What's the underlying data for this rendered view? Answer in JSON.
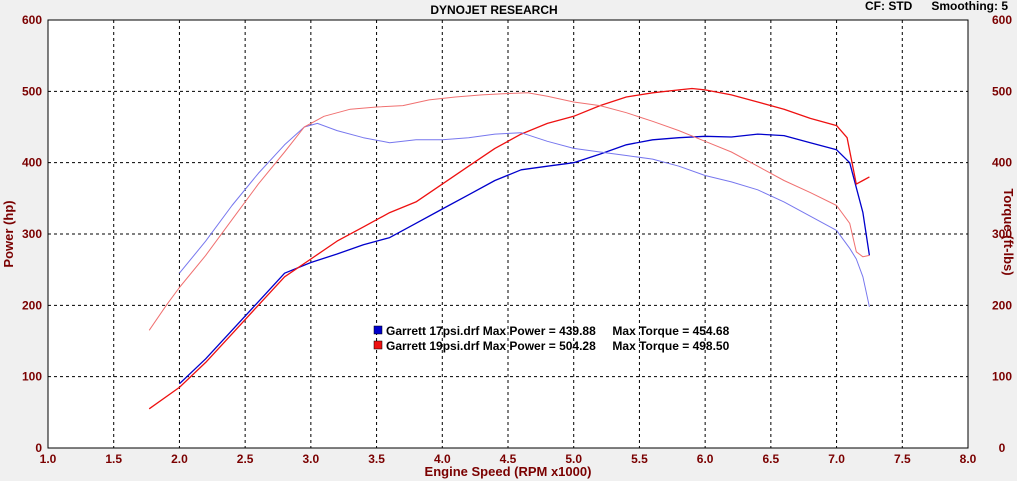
{
  "header": {
    "title": "DYNOJET RESEARCH",
    "cf": "CF: STD",
    "smoothing": "Smoothing: 5"
  },
  "chart_data": {
    "type": "line",
    "title": "DYNOJET RESEARCH",
    "xlabel": "Engine Speed (RPM x1000)",
    "ylabel": "Power (hp)",
    "ylabel_right": "Torque (ft-lbs)",
    "xlim": [
      1.0,
      8.0
    ],
    "ylim": [
      0,
      600
    ],
    "ylim_right": [
      0,
      600
    ],
    "x_ticks": [
      "1.0",
      "1.5",
      "2.0",
      "2.5",
      "3.0",
      "3.5",
      "4.0",
      "4.5",
      "5.0",
      "5.5",
      "6.0",
      "6.5",
      "7.0",
      "7.5",
      "8.0"
    ],
    "y_ticks": [
      "0",
      "100",
      "200",
      "300",
      "400",
      "500",
      "600"
    ],
    "y_ticks_right": [
      "0",
      "100",
      "200",
      "300",
      "400",
      "500",
      "600"
    ],
    "grid": true,
    "legend": [
      {
        "text": "Garrett 17psi.drf Max Power = 439.88     Max Torque = 454.68",
        "color": "#0000cc"
      },
      {
        "text": "Garrett 19psi.drf Max Power = 504.28     Max Torque = 498.50",
        "color": "#ee1111"
      }
    ],
    "series": [
      {
        "measure": "power",
        "run": "Garrett 17psi.drf",
        "color": "#0000cc",
        "width": 1.3,
        "x": [
          2.0,
          2.2,
          2.4,
          2.6,
          2.8,
          3.0,
          3.2,
          3.4,
          3.6,
          3.8,
          4.0,
          4.2,
          4.4,
          4.6,
          4.8,
          5.0,
          5.2,
          5.4,
          5.6,
          5.8,
          6.0,
          6.2,
          6.4,
          6.6,
          6.8,
          7.0,
          7.1,
          7.2,
          7.25
        ],
        "y": [
          90,
          125,
          165,
          205,
          245,
          260,
          272,
          285,
          295,
          315,
          335,
          355,
          375,
          390,
          395,
          400,
          412,
          425,
          432,
          435,
          437,
          436,
          440,
          438,
          428,
          418,
          400,
          330,
          270
        ]
      },
      {
        "measure": "power",
        "run": "Garrett 19psi.drf",
        "color": "#ee1111",
        "width": 1.3,
        "x": [
          1.77,
          2.0,
          2.2,
          2.4,
          2.6,
          2.8,
          3.0,
          3.2,
          3.4,
          3.6,
          3.8,
          4.0,
          4.2,
          4.4,
          4.6,
          4.8,
          5.0,
          5.2,
          5.4,
          5.6,
          5.8,
          5.9,
          6.0,
          6.2,
          6.4,
          6.6,
          6.8,
          7.0,
          7.08,
          7.15,
          7.2,
          7.25
        ],
        "y": [
          55,
          85,
          120,
          160,
          200,
          240,
          265,
          290,
          310,
          330,
          345,
          370,
          395,
          420,
          440,
          455,
          465,
          480,
          492,
          498,
          502,
          504,
          502,
          495,
          485,
          475,
          462,
          452,
          435,
          370,
          375,
          380
        ]
      },
      {
        "measure": "torque",
        "run": "Garrett 17psi.drf",
        "color": "#7777ee",
        "width": 1.0,
        "x": [
          2.0,
          2.2,
          2.4,
          2.6,
          2.8,
          2.95,
          3.05,
          3.2,
          3.4,
          3.6,
          3.8,
          4.0,
          4.2,
          4.4,
          4.6,
          4.8,
          5.0,
          5.2,
          5.4,
          5.6,
          5.8,
          6.0,
          6.2,
          6.4,
          6.6,
          6.8,
          7.0,
          7.1,
          7.15,
          7.2,
          7.25
        ],
        "y": [
          245,
          290,
          340,
          385,
          425,
          450,
          455,
          445,
          435,
          428,
          432,
          432,
          435,
          440,
          442,
          430,
          420,
          415,
          410,
          405,
          395,
          382,
          373,
          362,
          345,
          325,
          305,
          280,
          265,
          240,
          198
        ]
      },
      {
        "measure": "torque",
        "run": "Garrett 19psi.drf",
        "color": "#f07070",
        "width": 1.0,
        "x": [
          1.77,
          1.9,
          2.0,
          2.2,
          2.4,
          2.6,
          2.8,
          2.95,
          3.1,
          3.3,
          3.5,
          3.7,
          3.9,
          4.1,
          4.3,
          4.5,
          4.65,
          4.8,
          5.0,
          5.2,
          5.4,
          5.6,
          5.8,
          6.0,
          6.2,
          6.4,
          6.6,
          6.8,
          7.0,
          7.1,
          7.15,
          7.2,
          7.25
        ],
        "y": [
          165,
          200,
          225,
          270,
          320,
          370,
          415,
          450,
          465,
          475,
          478,
          480,
          488,
          492,
          495,
          497,
          498,
          493,
          485,
          480,
          470,
          458,
          445,
          430,
          415,
          395,
          375,
          358,
          340,
          315,
          275,
          268,
          270
        ]
      }
    ]
  }
}
